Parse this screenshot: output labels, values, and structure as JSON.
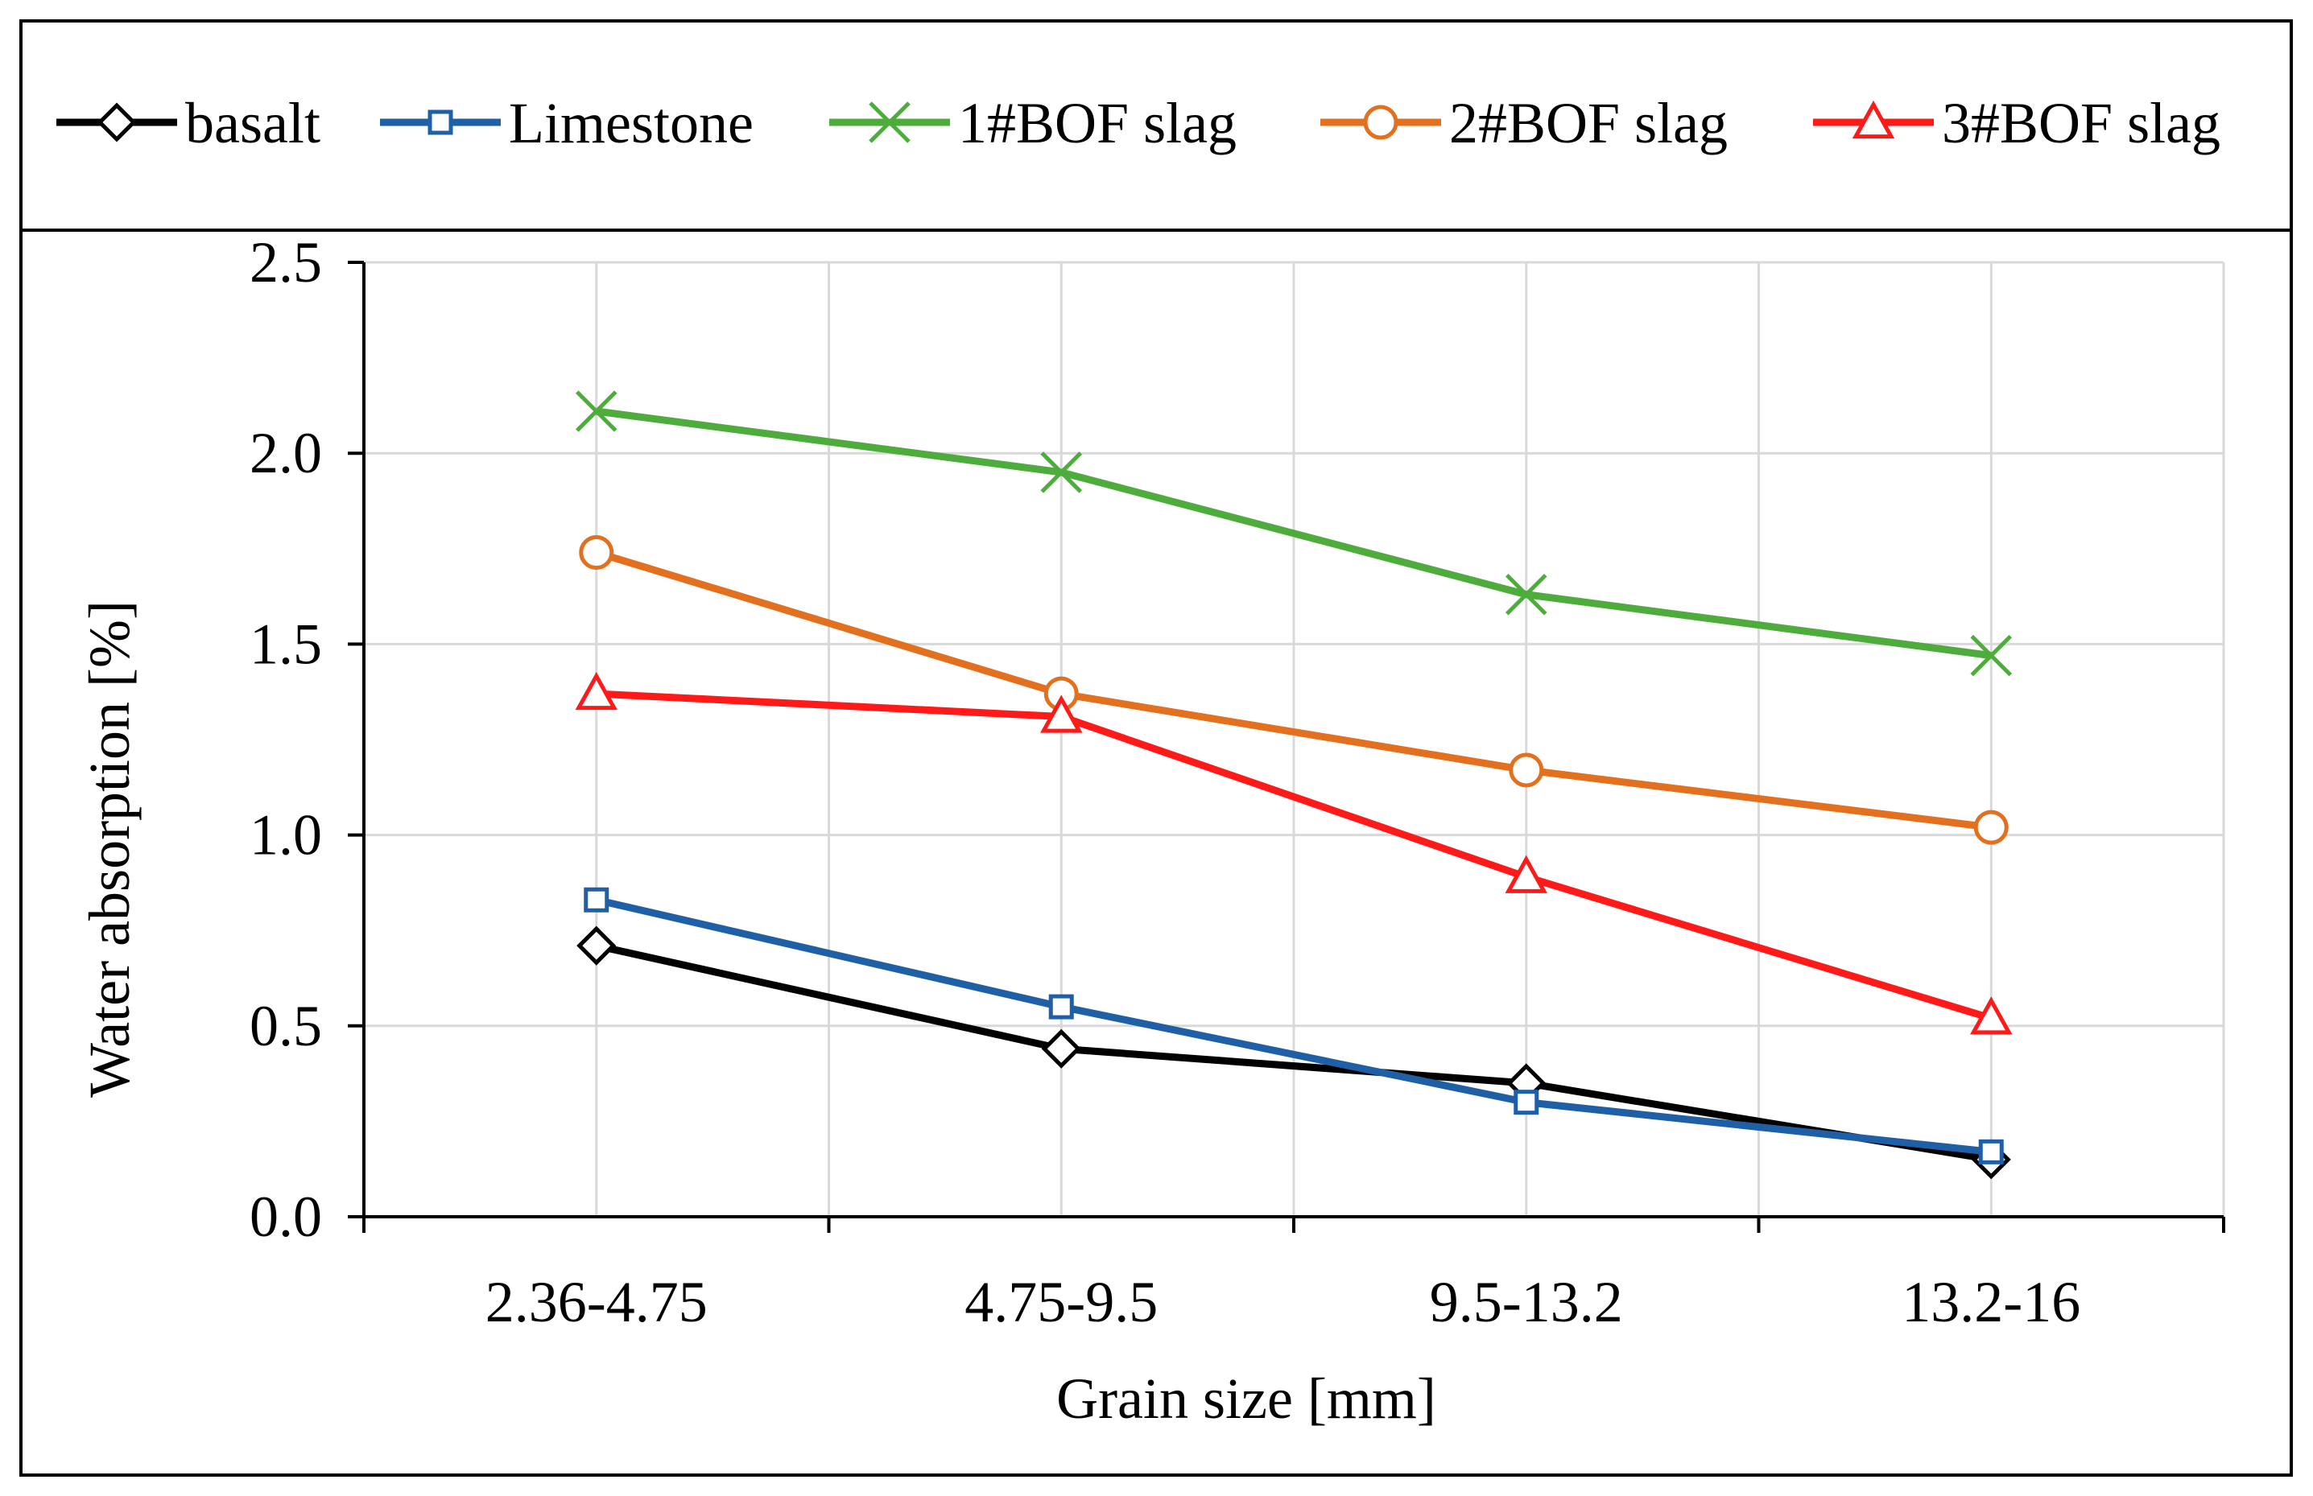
{
  "chart_data": {
    "type": "line",
    "title": "",
    "xlabel": "Grain size [mm]",
    "ylabel": "Water absorption [%]",
    "categories": [
      "2.36-4.75",
      "4.75-9.5",
      "9.5-13.2",
      "13.2-16"
    ],
    "ylim": [
      0,
      2.5
    ],
    "yticks": [
      "0.0",
      "0.5",
      "1.0",
      "1.5",
      "2.0",
      "2.5"
    ],
    "grid": true,
    "legend_position": "top",
    "series": [
      {
        "name": "basalt",
        "color": "#000000",
        "marker": "diamond",
        "values": [
          0.71,
          0.44,
          0.35,
          0.15
        ]
      },
      {
        "name": "Limestone",
        "color": "#1f5fa6",
        "marker": "square",
        "values": [
          0.83,
          0.55,
          0.3,
          0.17
        ]
      },
      {
        "name": "1#BOF slag",
        "color": "#4eac3c",
        "marker": "x",
        "values": [
          2.11,
          1.95,
          1.63,
          1.47
        ]
      },
      {
        "name": "2#BOF slag",
        "color": "#e2701f",
        "marker": "circle",
        "values": [
          1.74,
          1.37,
          1.17,
          1.02
        ]
      },
      {
        "name": "3#BOF slag",
        "color": "#ff1a1a",
        "marker": "triangle",
        "values": [
          1.37,
          1.31,
          0.89,
          0.52
        ]
      }
    ]
  }
}
